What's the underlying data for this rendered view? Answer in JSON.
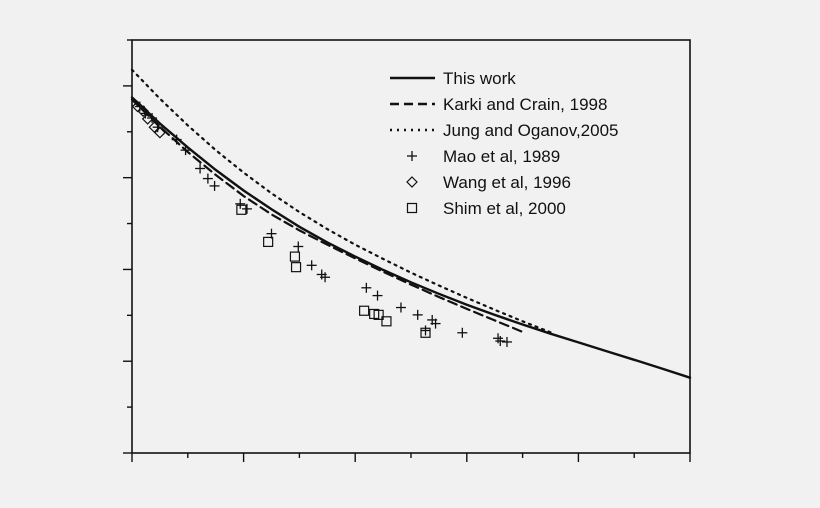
{
  "colors": {
    "background": "#f1f1f1",
    "ink": "#111111"
  },
  "chart_data": {
    "type": "line",
    "title": "",
    "xlabel": "",
    "ylabel": "",
    "xlim": [
      0,
      5
    ],
    "ylim": [
      0,
      9
    ],
    "x_tick_labels": [],
    "y_tick_labels": [],
    "grid": false,
    "legend_position": "top-right",
    "legend": [
      {
        "label": "This work",
        "marker": "solid-line"
      },
      {
        "label": "Karki and Crain, 1998",
        "marker": "dashed-line"
      },
      {
        "label": "Jung and Oganov,2005",
        "marker": "dotted-line"
      },
      {
        "label": "Mao et al, 1989",
        "marker": "plus"
      },
      {
        "label": "Wang et al, 1996",
        "marker": "diamond"
      },
      {
        "label": "Shim et al, 2000",
        "marker": "square"
      }
    ],
    "series": [
      {
        "name": "This work",
        "kind": "line",
        "style": "solid",
        "x": [
          0,
          0.25,
          0.5,
          0.75,
          1.0,
          1.25,
          1.5,
          1.75,
          2.0,
          2.25,
          2.5,
          2.75,
          3.0,
          3.25,
          3.5,
          3.75,
          4.0,
          4.25,
          4.5,
          4.75,
          5.0
        ],
        "y": [
          7.75,
          7.18,
          6.66,
          6.17,
          5.72,
          5.31,
          4.93,
          4.59,
          4.28,
          3.99,
          3.72,
          3.47,
          3.23,
          3.01,
          2.8,
          2.6,
          2.41,
          2.22,
          2.03,
          1.84,
          1.64
        ]
      },
      {
        "name": "Karki and Crain, 1998",
        "kind": "line",
        "style": "dashed",
        "x": [
          0,
          0.25,
          0.5,
          0.75,
          1.0,
          1.25,
          1.5,
          1.75,
          2.0,
          2.25,
          2.5,
          2.75,
          3.0,
          3.25,
          3.5
        ],
        "y": [
          7.7,
          7.11,
          6.56,
          6.06,
          5.6,
          5.2,
          4.85,
          4.54,
          4.24,
          3.95,
          3.67,
          3.4,
          3.14,
          2.89,
          2.64
        ]
      },
      {
        "name": "Jung and Oganov,2005",
        "kind": "line",
        "style": "dotted",
        "x": [
          0,
          0.25,
          0.5,
          0.75,
          1.0,
          1.25,
          1.5,
          1.75,
          2.0,
          2.25,
          2.5,
          2.75,
          3.0,
          3.25,
          3.5,
          3.75
        ],
        "y": [
          8.35,
          7.72,
          7.14,
          6.6,
          6.11,
          5.66,
          5.25,
          4.88,
          4.54,
          4.23,
          3.93,
          3.65,
          3.38,
          3.12,
          2.87,
          2.63
        ]
      },
      {
        "name": "Mao et al, 1989",
        "kind": "scatter",
        "marker": "plus",
        "x": [
          0.07,
          0.12,
          0.18,
          0.23,
          0.4,
          0.48,
          0.61,
          0.68,
          0.74,
          0.97,
          1.03,
          1.25,
          1.49,
          1.61,
          1.7,
          1.73,
          2.1,
          2.2,
          2.41,
          2.56,
          2.69,
          2.72,
          2.63,
          2.96,
          3.28,
          3.3,
          3.36
        ],
        "y": [
          7.55,
          7.4,
          7.3,
          7.1,
          6.83,
          6.6,
          6.2,
          5.98,
          5.82,
          5.43,
          5.32,
          4.78,
          4.5,
          4.09,
          3.89,
          3.83,
          3.6,
          3.43,
          3.17,
          3.01,
          2.9,
          2.82,
          2.67,
          2.62,
          2.5,
          2.44,
          2.42
        ]
      },
      {
        "name": "Wang et al, 1996",
        "kind": "scatter",
        "marker": "diamond",
        "x": [
          0.05,
          0.1,
          0.14,
          0.2,
          0.25
        ],
        "y": [
          7.55,
          7.45,
          7.28,
          7.1,
          6.98
        ]
      },
      {
        "name": "Shim et al, 2000",
        "kind": "scatter",
        "marker": "square",
        "x": [
          0.98,
          1.22,
          1.46,
          1.47,
          2.08,
          2.17,
          2.21,
          2.28,
          2.63
        ],
        "y": [
          5.3,
          4.6,
          4.28,
          4.05,
          3.1,
          3.03,
          3.01,
          2.87,
          2.62
        ]
      }
    ]
  }
}
